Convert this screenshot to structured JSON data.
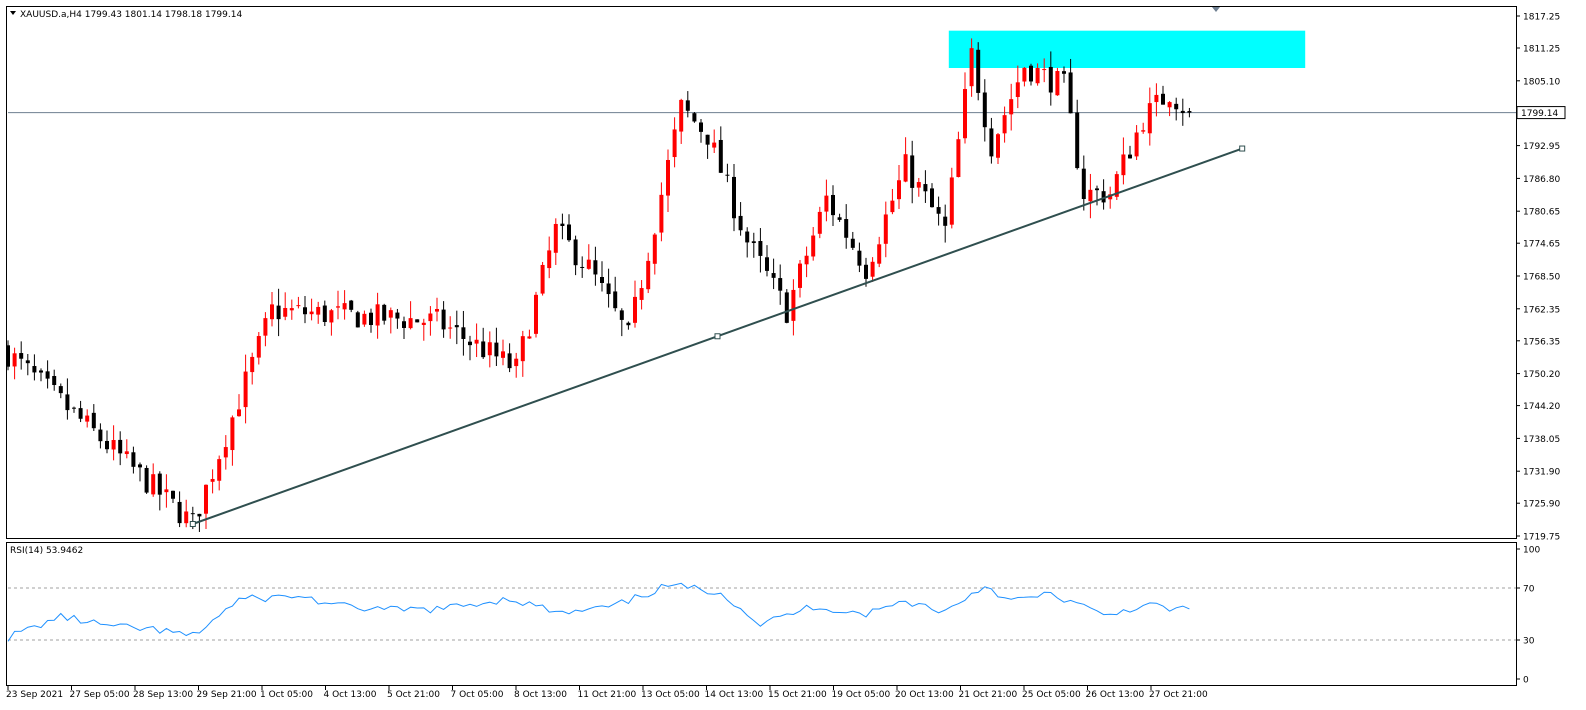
{
  "colors": {
    "background": "#ffffff",
    "frame": "#000000",
    "bull": "#ff0000",
    "bear": "#000000",
    "bid_line": "#6e7f91",
    "trendline": "#2f4f4f",
    "zone": "#00ffff",
    "rsi": "#1e90ff",
    "rsi_levels": "#a0a0a0"
  },
  "header": {
    "symbol_label": "XAUUSD.a,H4  1799.43 1801.14 1798.18 1799.14",
    "menu_icon": "triangle-down-icon"
  },
  "chart_data": [
    {
      "type": "candlestick",
      "symbol": "XAUUSD.a",
      "timeframe": "H4",
      "ohlc_last": {
        "open": 1799.43,
        "high": 1801.14,
        "low": 1798.18,
        "close": 1799.14
      },
      "current_price_label": "1799.14",
      "ylim": [
        1719.75,
        1817.25
      ],
      "y_ticks": [
        "1817.25",
        "1811.25",
        "1805.10",
        "1799.14",
        "1792.95",
        "1786.80",
        "1780.65",
        "1774.65",
        "1768.50",
        "1762.35",
        "1756.35",
        "1750.20",
        "1744.20",
        "1738.05",
        "1731.90",
        "1725.90",
        "1719.75"
      ],
      "x_ticks": [
        "23 Sep 2021",
        "27 Sep 05:00",
        "28 Sep 13:00",
        "29 Sep 21:00",
        "1 Oct 05:00",
        "4 Oct 13:00",
        "5 Oct 21:00",
        "7 Oct 05:00",
        "8 Oct 13:00",
        "11 Oct 21:00",
        "13 Oct 05:00",
        "14 Oct 13:00",
        "15 Oct 21:00",
        "19 Oct 05:00",
        "20 Oct 13:00",
        "21 Oct 21:00",
        "25 Oct 05:00",
        "26 Oct 13:00",
        "27 Oct 21:00"
      ],
      "anchors": [
        {
          "bar": 0,
          "price": 1754
        },
        {
          "bar": 28,
          "price": 1722
        },
        {
          "bar": 40,
          "price": 1762
        },
        {
          "bar": 65,
          "price": 1760
        },
        {
          "bar": 77,
          "price": 1751
        },
        {
          "bar": 83,
          "price": 1777
        },
        {
          "bar": 88,
          "price": 1770
        },
        {
          "bar": 94,
          "price": 1757
        },
        {
          "bar": 102,
          "price": 1800
        },
        {
          "bar": 106,
          "price": 1795
        },
        {
          "bar": 112,
          "price": 1775
        },
        {
          "bar": 118,
          "price": 1762
        },
        {
          "bar": 124,
          "price": 1783
        },
        {
          "bar": 130,
          "price": 1770
        },
        {
          "bar": 136,
          "price": 1789
        },
        {
          "bar": 142,
          "price": 1777
        },
        {
          "bar": 146,
          "price": 1810
        },
        {
          "bar": 149,
          "price": 1793
        },
        {
          "bar": 154,
          "price": 1808
        },
        {
          "bar": 160,
          "price": 1804
        },
        {
          "bar": 163,
          "price": 1784
        },
        {
          "bar": 167,
          "price": 1784
        },
        {
          "bar": 172,
          "price": 1798
        },
        {
          "bar": 176,
          "price": 1803
        },
        {
          "bar": 179,
          "price": 1799
        }
      ],
      "trendline": {
        "start": {
          "bar": 28,
          "price": 1722
        },
        "end": {
          "bar": 187,
          "price": 1792.4
        }
      },
      "resistance_zone": {
        "bar_from": 143,
        "bar_to": 197,
        "price_from": 1807.5,
        "price_to": 1814.5
      }
    },
    {
      "type": "line",
      "name": "RSI(14)",
      "label": "RSI(14) 53.9462",
      "last_value": 53.9462,
      "ylim": [
        0,
        100
      ],
      "levels": [
        70,
        30
      ],
      "y_ticks": [
        "100",
        "70",
        "30",
        "0"
      ],
      "anchors": [
        {
          "bar": 0,
          "value": 32
        },
        {
          "bar": 8,
          "value": 48
        },
        {
          "bar": 16,
          "value": 40
        },
        {
          "bar": 22,
          "value": 38
        },
        {
          "bar": 28,
          "value": 33
        },
        {
          "bar": 35,
          "value": 61
        },
        {
          "bar": 44,
          "value": 64
        },
        {
          "bar": 50,
          "value": 56
        },
        {
          "bar": 58,
          "value": 53
        },
        {
          "bar": 66,
          "value": 54
        },
        {
          "bar": 76,
          "value": 62
        },
        {
          "bar": 84,
          "value": 50
        },
        {
          "bar": 92,
          "value": 56
        },
        {
          "bar": 100,
          "value": 72
        },
        {
          "bar": 108,
          "value": 67
        },
        {
          "bar": 114,
          "value": 42
        },
        {
          "bar": 122,
          "value": 56
        },
        {
          "bar": 130,
          "value": 50
        },
        {
          "bar": 136,
          "value": 60
        },
        {
          "bar": 142,
          "value": 52
        },
        {
          "bar": 148,
          "value": 72
        },
        {
          "bar": 152,
          "value": 60
        },
        {
          "bar": 158,
          "value": 65
        },
        {
          "bar": 162,
          "value": 58
        },
        {
          "bar": 166,
          "value": 48
        },
        {
          "bar": 172,
          "value": 57
        },
        {
          "bar": 176,
          "value": 54
        }
      ]
    }
  ]
}
